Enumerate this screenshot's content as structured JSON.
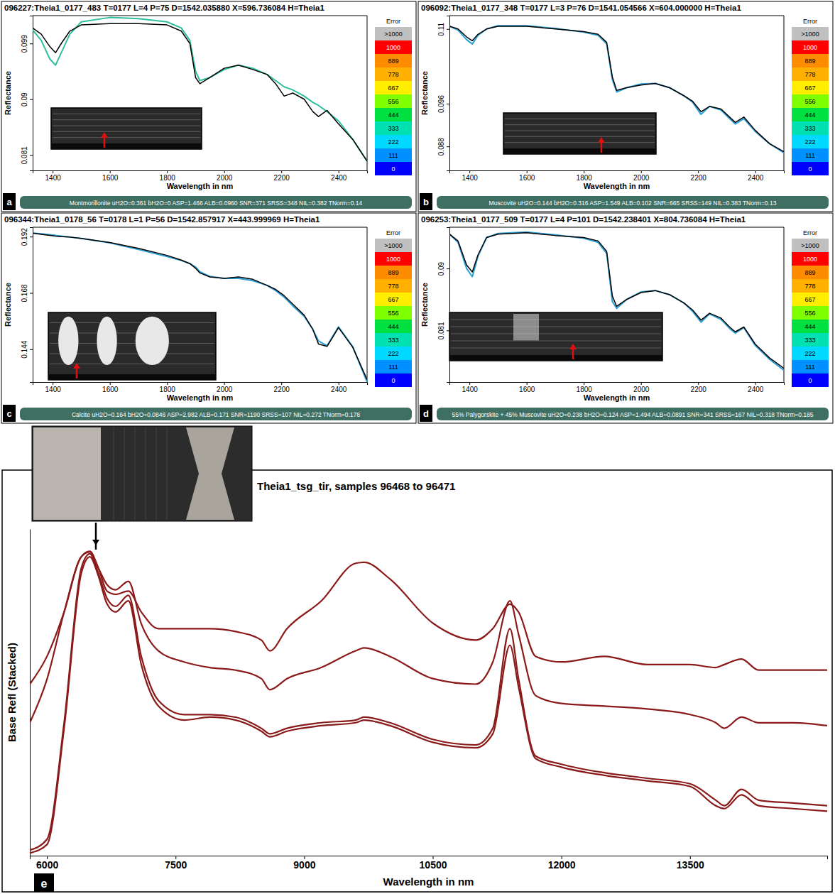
{
  "chart_data": [
    {
      "type": "line",
      "panel_label": "a",
      "title": "096227:Theia1_0177_483  T=0177 L=4 P=75 D=1542.035880 X=596.736084 H=Theia1",
      "x_label": "Wavelength in nm",
      "y_label": "Reflectance",
      "footer": "Montmorillonite  uH2O=0.361  bH2O=0  ASP=1.466  ALB=0.0960  SNR=371  SRSS=348  NIL=0.382  TNorm=0.14",
      "xlim": [
        1330,
        2500
      ],
      "xticks": [
        1400,
        1600,
        1800,
        2000,
        2200,
        2400
      ],
      "ylim": [
        0.0785,
        0.1035
      ],
      "yticks": [
        0.081,
        0.09,
        0.099
      ],
      "x": [
        1330,
        1360,
        1390,
        1410,
        1430,
        1460,
        1500,
        1600,
        1700,
        1800,
        1850,
        1880,
        1900,
        1915,
        1950,
        2000,
        2050,
        2100,
        2150,
        2180,
        2210,
        2240,
        2280,
        2310,
        2330,
        2360,
        2400,
        2450,
        2500
      ],
      "series": [
        {
          "color": "#2fbf9f",
          "values": [
            0.1012,
            0.0995,
            0.0965,
            0.0955,
            0.0975,
            0.1005,
            0.1025,
            0.1032,
            0.103,
            0.1025,
            0.1015,
            0.0995,
            0.0945,
            0.093,
            0.0935,
            0.0948,
            0.0955,
            0.095,
            0.094,
            0.093,
            0.092,
            0.0915,
            0.0905,
            0.0895,
            0.089,
            0.088,
            0.0865,
            0.0835,
            0.08
          ]
        },
        {
          "color": "#000000",
          "values": [
            0.1015,
            0.1005,
            0.0985,
            0.0975,
            0.099,
            0.101,
            0.102,
            0.1022,
            0.1022,
            0.102,
            0.101,
            0.099,
            0.0935,
            0.0925,
            0.0935,
            0.095,
            0.0955,
            0.0948,
            0.094,
            0.0925,
            0.0905,
            0.091,
            0.09,
            0.088,
            0.0872,
            0.0882,
            0.086,
            0.0835,
            0.08
          ]
        }
      ],
      "error_scale": {
        "title": "Error",
        "labels": [
          ">1000",
          "1000",
          "889",
          "778",
          "667",
          "556",
          "444",
          "333",
          "222",
          "111",
          "0"
        ],
        "colors": [
          "#c0c0c0",
          "#ff0000",
          "#ff8c00",
          "#ffb000",
          "#ffee00",
          "#7fff00",
          "#00e040",
          "#00e0b0",
          "#00d8ff",
          "#0090ff",
          "#0000ff"
        ]
      }
    },
    {
      "type": "line",
      "panel_label": "b",
      "title": "096092:Theia1_0177_348  T=0177 L=3 P=76 D=1541.054566 X=604.000000 H=Theia1",
      "x_label": "Wavelength in nm",
      "y_label": "Reflectance",
      "footer": "Muscovite  uH2O=0.144  bH2O=0.316  ASP=1.549  ALB=0.102  SNR=665  SRSS=149  NIL=0.383  TNorm=0.13",
      "xlim": [
        1330,
        2500
      ],
      "xticks": [
        1400,
        1600,
        1800,
        2000,
        2200,
        2400
      ],
      "ylim": [
        0.0835,
        0.1125
      ],
      "yticks": [
        0.088,
        0.096,
        0.11
      ],
      "x": [
        1330,
        1360,
        1390,
        1410,
        1430,
        1460,
        1500,
        1600,
        1700,
        1800,
        1850,
        1880,
        1900,
        1915,
        1950,
        2000,
        2050,
        2100,
        2150,
        2180,
        2210,
        2240,
        2280,
        2310,
        2330,
        2360,
        2400,
        2450,
        2500
      ],
      "series": [
        {
          "color": "#2a9fd6",
          "values": [
            0.1105,
            0.1098,
            0.108,
            0.1072,
            0.1088,
            0.11,
            0.1106,
            0.1106,
            0.1101,
            0.1094,
            0.1088,
            0.1072,
            0.1005,
            0.0982,
            0.099,
            0.0997,
            0.0998,
            0.099,
            0.0975,
            0.0963,
            0.094,
            0.0955,
            0.0948,
            0.0932,
            0.0922,
            0.0932,
            0.0908,
            0.0885,
            0.0868
          ]
        },
        {
          "color": "#000000",
          "values": [
            0.1105,
            0.11,
            0.1085,
            0.1078,
            0.109,
            0.11,
            0.1105,
            0.1105,
            0.11,
            0.1095,
            0.109,
            0.1075,
            0.101,
            0.0985,
            0.099,
            0.0995,
            0.0998,
            0.099,
            0.0975,
            0.0965,
            0.0945,
            0.0955,
            0.095,
            0.0935,
            0.0925,
            0.0935,
            0.091,
            0.0885,
            0.087
          ]
        }
      ],
      "error_scale": {
        "title": "Error",
        "labels": [
          ">1000",
          "1000",
          "889",
          "778",
          "667",
          "556",
          "444",
          "333",
          "222",
          "111",
          "0"
        ],
        "colors": [
          "#c0c0c0",
          "#ff0000",
          "#ff8c00",
          "#ffb000",
          "#ffee00",
          "#7fff00",
          "#00e040",
          "#00e0b0",
          "#00d8ff",
          "#0090ff",
          "#0000ff"
        ]
      }
    },
    {
      "type": "line",
      "panel_label": "c",
      "title": "096344:Theia1_0178_56  T=0178 L=1 P=56 D=1542.857917 X=443.999969 H=Theia1",
      "x_label": "Wavelength in nm",
      "y_label": "Reflectance",
      "footer": "Calcite  uH2O=0.164  bH2O=0.0846  ASP=2.982  ALB=0.171  SNR=1190  SRSS=107  NIL=0.272  TNorm=0.178",
      "xlim": [
        1330,
        2500
      ],
      "xticks": [
        1400,
        1600,
        1800,
        2000,
        2200,
        2400
      ],
      "ylim": [
        0.13,
        0.196
      ],
      "yticks": [
        0.144,
        0.168,
        0.192
      ],
      "x": [
        1330,
        1360,
        1390,
        1410,
        1430,
        1460,
        1500,
        1600,
        1700,
        1800,
        1850,
        1880,
        1900,
        1915,
        1950,
        2000,
        2050,
        2100,
        2150,
        2180,
        2210,
        2240,
        2280,
        2310,
        2330,
        2360,
        2400,
        2450,
        2500
      ],
      "series": [
        {
          "color": "#2a9fd6",
          "values": [
            0.1935,
            0.1932,
            0.1928,
            0.1925,
            0.1922,
            0.1918,
            0.1912,
            0.1893,
            0.1865,
            0.1835,
            0.1818,
            0.1805,
            0.179,
            0.177,
            0.175,
            0.1742,
            0.1742,
            0.1732,
            0.1712,
            0.169,
            0.1662,
            0.1625,
            0.158,
            0.1525,
            0.1475,
            0.1455,
            0.1535,
            0.145,
            0.13
          ]
        },
        {
          "color": "#000000",
          "values": [
            0.1935,
            0.193,
            0.1925,
            0.1922,
            0.192,
            0.1918,
            0.1912,
            0.1895,
            0.187,
            0.184,
            0.182,
            0.1805,
            0.1785,
            0.1765,
            0.1748,
            0.1742,
            0.1748,
            0.1738,
            0.1712,
            0.1695,
            0.1668,
            0.1632,
            0.1585,
            0.1525,
            0.1462,
            0.1452,
            0.1532,
            0.1448,
            0.131
          ]
        }
      ],
      "error_scale": {
        "title": "Error",
        "labels": [
          ">1000",
          "1000",
          "889",
          "778",
          "667",
          "556",
          "444",
          "333",
          "222",
          "111",
          "0"
        ],
        "colors": [
          "#c0c0c0",
          "#ff0000",
          "#ff8c00",
          "#ffb000",
          "#ffee00",
          "#7fff00",
          "#00e040",
          "#00e0b0",
          "#00d8ff",
          "#0090ff",
          "#0000ff"
        ]
      }
    },
    {
      "type": "line",
      "panel_label": "d",
      "title": "096253:Theia1_0177_509  T=0177 L=4 P=101 D=1542.238401 X=804.736084 H=Theia1",
      "x_label": "Wavelength in nm",
      "y_label": "Reflectance",
      "footer": "55% Palygorskite + 45% Muscovite  uH2O=0.238  bH2O=0.124  ASP=1.494  ALB=0.0891  SNR=341  SRSS=167  NIL=0.318  TNorm=0.185",
      "xlim": [
        1330,
        2500
      ],
      "xticks": [
        1400,
        1600,
        1800,
        2000,
        2200,
        2400
      ],
      "ylim": [
        0.0735,
        0.096
      ],
      "yticks": [
        0.081,
        0.09
      ],
      "x": [
        1330,
        1360,
        1390,
        1410,
        1430,
        1460,
        1500,
        1600,
        1700,
        1800,
        1850,
        1880,
        1900,
        1915,
        1950,
        2000,
        2050,
        2100,
        2150,
        2180,
        2210,
        2240,
        2280,
        2310,
        2330,
        2360,
        2400,
        2450,
        2500
      ],
      "series": [
        {
          "color": "#2a9fd6",
          "values": [
            0.095,
            0.0938,
            0.09,
            0.0888,
            0.0918,
            0.0945,
            0.0951,
            0.0953,
            0.0949,
            0.0944,
            0.0938,
            0.0922,
            0.0852,
            0.0842,
            0.0855,
            0.0866,
            0.0868,
            0.0862,
            0.085,
            0.0838,
            0.0822,
            0.0834,
            0.0826,
            0.0813,
            0.0806,
            0.0814,
            0.0788,
            0.0768,
            0.0752
          ]
        },
        {
          "color": "#000000",
          "values": [
            0.095,
            0.094,
            0.0905,
            0.0895,
            0.092,
            0.0945,
            0.095,
            0.0952,
            0.0948,
            0.0945,
            0.094,
            0.0925,
            0.086,
            0.0845,
            0.0855,
            0.0865,
            0.0868,
            0.0862,
            0.085,
            0.084,
            0.0825,
            0.0835,
            0.0828,
            0.0815,
            0.0808,
            0.0815,
            0.079,
            0.077,
            0.0755
          ]
        }
      ],
      "error_scale": {
        "title": "Error",
        "labels": [
          ">1000",
          "1000",
          "889",
          "778",
          "667",
          "556",
          "444",
          "333",
          "222",
          "111",
          "0"
        ],
        "colors": [
          "#c0c0c0",
          "#ff0000",
          "#ff8c00",
          "#ffb000",
          "#ffee00",
          "#7fff00",
          "#00e040",
          "#00e0b0",
          "#00d8ff",
          "#0090ff",
          "#0000ff"
        ]
      }
    },
    {
      "type": "line",
      "panel_label": "e",
      "title": "Theia1_tsg_tir,  samples 96468 to 96471",
      "x_label": "Wavelength in nm",
      "y_label": "Base Refl (Stacked)",
      "tick_labels": "x",
      "xlim": [
        5800,
        15100
      ],
      "xticks": [
        6000,
        7500,
        9000,
        10500,
        12000,
        13500
      ],
      "ylim": [
        0,
        100
      ],
      "yticks": [],
      "x": [
        5800,
        6000,
        6200,
        6400,
        6500,
        6600,
        6700,
        6800,
        6950,
        7100,
        7300,
        7600,
        7900,
        8200,
        8500,
        8600,
        8800,
        9200,
        9600,
        9700,
        10000,
        10500,
        11000,
        11200,
        11400,
        11500,
        11700,
        12000,
        12500,
        13000,
        13500,
        13800,
        13900,
        14100,
        14300,
        14700,
        15100
      ],
      "series": [
        {
          "color": "#8b1a1a",
          "values": [
            52.5,
            61,
            74.6,
            91.5,
            93,
            88,
            81,
            80,
            81,
            74.6,
            69.5,
            69.5,
            69.5,
            68.6,
            66,
            62.7,
            69.5,
            78,
            89.5,
            89.8,
            84.7,
            71.2,
            66,
            69.5,
            77,
            74.6,
            61,
            59.3,
            61,
            58.5,
            58.5,
            57.6,
            58.5,
            60.2,
            56.8,
            56.8,
            56.8
          ]
        },
        {
          "color": "#8b1a1a",
          "values": [
            40.7,
            54,
            74.6,
            91.5,
            93.2,
            88,
            83,
            81.4,
            84,
            71,
            62.7,
            59.3,
            57.6,
            56.8,
            54.2,
            50.8,
            54.2,
            57.6,
            62.7,
            63.6,
            61,
            54.2,
            52.5,
            59.3,
            78,
            67.8,
            49,
            46.6,
            45.8,
            44.9,
            43.2,
            40.7,
            39,
            42.4,
            40.7,
            40.7,
            39.8
          ]
        },
        {
          "color": "#8b1a1a",
          "values": [
            1.7,
            5,
            40.7,
            88,
            92.4,
            86.4,
            78.8,
            76.3,
            79.7,
            61,
            47.5,
            43.2,
            43.2,
            42.4,
            39,
            37.3,
            39,
            40.7,
            41.5,
            42.4,
            40.7,
            35.6,
            33.9,
            39,
            69.5,
            54.2,
            30.5,
            28,
            25.4,
            23.7,
            22,
            17,
            15.3,
            20.3,
            17,
            16.1,
            15.3
          ]
        },
        {
          "color": "#8b1a1a",
          "values": [
            0.8,
            3.4,
            39,
            86.4,
            91.5,
            85.6,
            77.1,
            74.6,
            78,
            58.5,
            45.8,
            41.5,
            42.4,
            41.5,
            38.1,
            36.4,
            38.1,
            39.8,
            40.7,
            41.5,
            39.8,
            34.7,
            33,
            37.3,
            64.4,
            51.7,
            29.7,
            27.1,
            24.6,
            22.9,
            21.2,
            15.3,
            14.4,
            18.6,
            15.3,
            14.4,
            13.6
          ]
        }
      ]
    }
  ]
}
